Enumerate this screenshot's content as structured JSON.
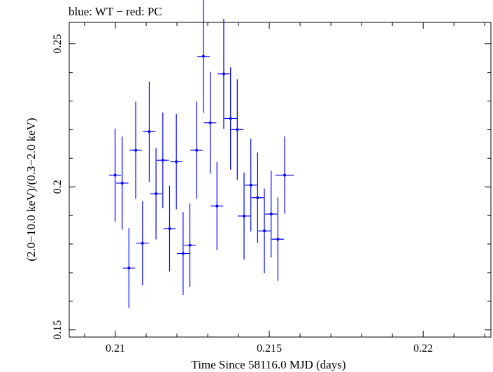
{
  "chart_data": {
    "type": "scatter",
    "title": "blue: WT − red: PC",
    "xlabel": "Time Since 58116.0 MJD (days)",
    "ylabel": "(2.0−10.0 keV)/(0.3−2.0 keV)",
    "xlim": [
      0.2085,
      0.2222
    ],
    "ylim": [
      0.1475,
      0.2575
    ],
    "xticks": [
      0.21,
      0.215,
      0.22
    ],
    "xtick_labels": [
      "0.21",
      "0.215",
      "0.22"
    ],
    "yticks": [
      0.15,
      0.2,
      0.25
    ],
    "ytick_labels": [
      "0.15",
      "0.2",
      "0.25"
    ],
    "grid": false,
    "series": [
      {
        "color": "#0000ff",
        "points": [
          {
            "x": 0.20999,
            "y": 0.2041,
            "xerr": 0.0002,
            "yerr": 0.0163
          },
          {
            "x": 0.21022,
            "y": 0.2013,
            "xerr": 0.0002,
            "yerr": 0.0163
          },
          {
            "x": 0.21044,
            "y": 0.1716,
            "xerr": 0.0002,
            "yerr": 0.014
          },
          {
            "x": 0.21066,
            "y": 0.2128,
            "xerr": 0.0002,
            "yerr": 0.017
          },
          {
            "x": 0.21088,
            "y": 0.1803,
            "xerr": 0.0002,
            "yerr": 0.0147
          },
          {
            "x": 0.2111,
            "y": 0.2193,
            "xerr": 0.0002,
            "yerr": 0.0175
          },
          {
            "x": 0.21132,
            "y": 0.1976,
            "xerr": 0.0002,
            "yerr": 0.016
          },
          {
            "x": 0.21154,
            "y": 0.2093,
            "xerr": 0.0002,
            "yerr": 0.0167
          },
          {
            "x": 0.21176,
            "y": 0.1854,
            "xerr": 0.0002,
            "yerr": 0.015
          },
          {
            "x": 0.21198,
            "y": 0.2088,
            "xerr": 0.0002,
            "yerr": 0.0167
          },
          {
            "x": 0.2122,
            "y": 0.1767,
            "xerr": 0.0002,
            "yerr": 0.0145
          },
          {
            "x": 0.21242,
            "y": 0.1796,
            "xerr": 0.0002,
            "yerr": 0.0146
          },
          {
            "x": 0.21264,
            "y": 0.2128,
            "xerr": 0.0002,
            "yerr": 0.017
          },
          {
            "x": 0.21286,
            "y": 0.2456,
            "xerr": 0.0002,
            "yerr": 0.0197
          },
          {
            "x": 0.21308,
            "y": 0.2224,
            "xerr": 0.0002,
            "yerr": 0.0178
          },
          {
            "x": 0.2133,
            "y": 0.1933,
            "xerr": 0.0002,
            "yerr": 0.0154
          },
          {
            "x": 0.21352,
            "y": 0.2395,
            "xerr": 0.0002,
            "yerr": 0.0192
          },
          {
            "x": 0.21374,
            "y": 0.2239,
            "xerr": 0.0002,
            "yerr": 0.0179
          },
          {
            "x": 0.21396,
            "y": 0.22,
            "xerr": 0.0002,
            "yerr": 0.0176
          },
          {
            "x": 0.21418,
            "y": 0.1898,
            "xerr": 0.0002,
            "yerr": 0.0152
          },
          {
            "x": 0.2144,
            "y": 0.2006,
            "xerr": 0.0002,
            "yerr": 0.0162
          },
          {
            "x": 0.21462,
            "y": 0.1962,
            "xerr": 0.0002,
            "yerr": 0.0158
          },
          {
            "x": 0.21484,
            "y": 0.1846,
            "xerr": 0.0002,
            "yerr": 0.0148
          },
          {
            "x": 0.21506,
            "y": 0.1905,
            "xerr": 0.0002,
            "yerr": 0.0152
          },
          {
            "x": 0.21528,
            "y": 0.1817,
            "xerr": 0.0002,
            "yerr": 0.0146
          },
          {
            "x": 0.2155,
            "y": 0.2041,
            "xerr": 0.0003,
            "yerr": 0.0135
          }
        ]
      }
    ]
  }
}
